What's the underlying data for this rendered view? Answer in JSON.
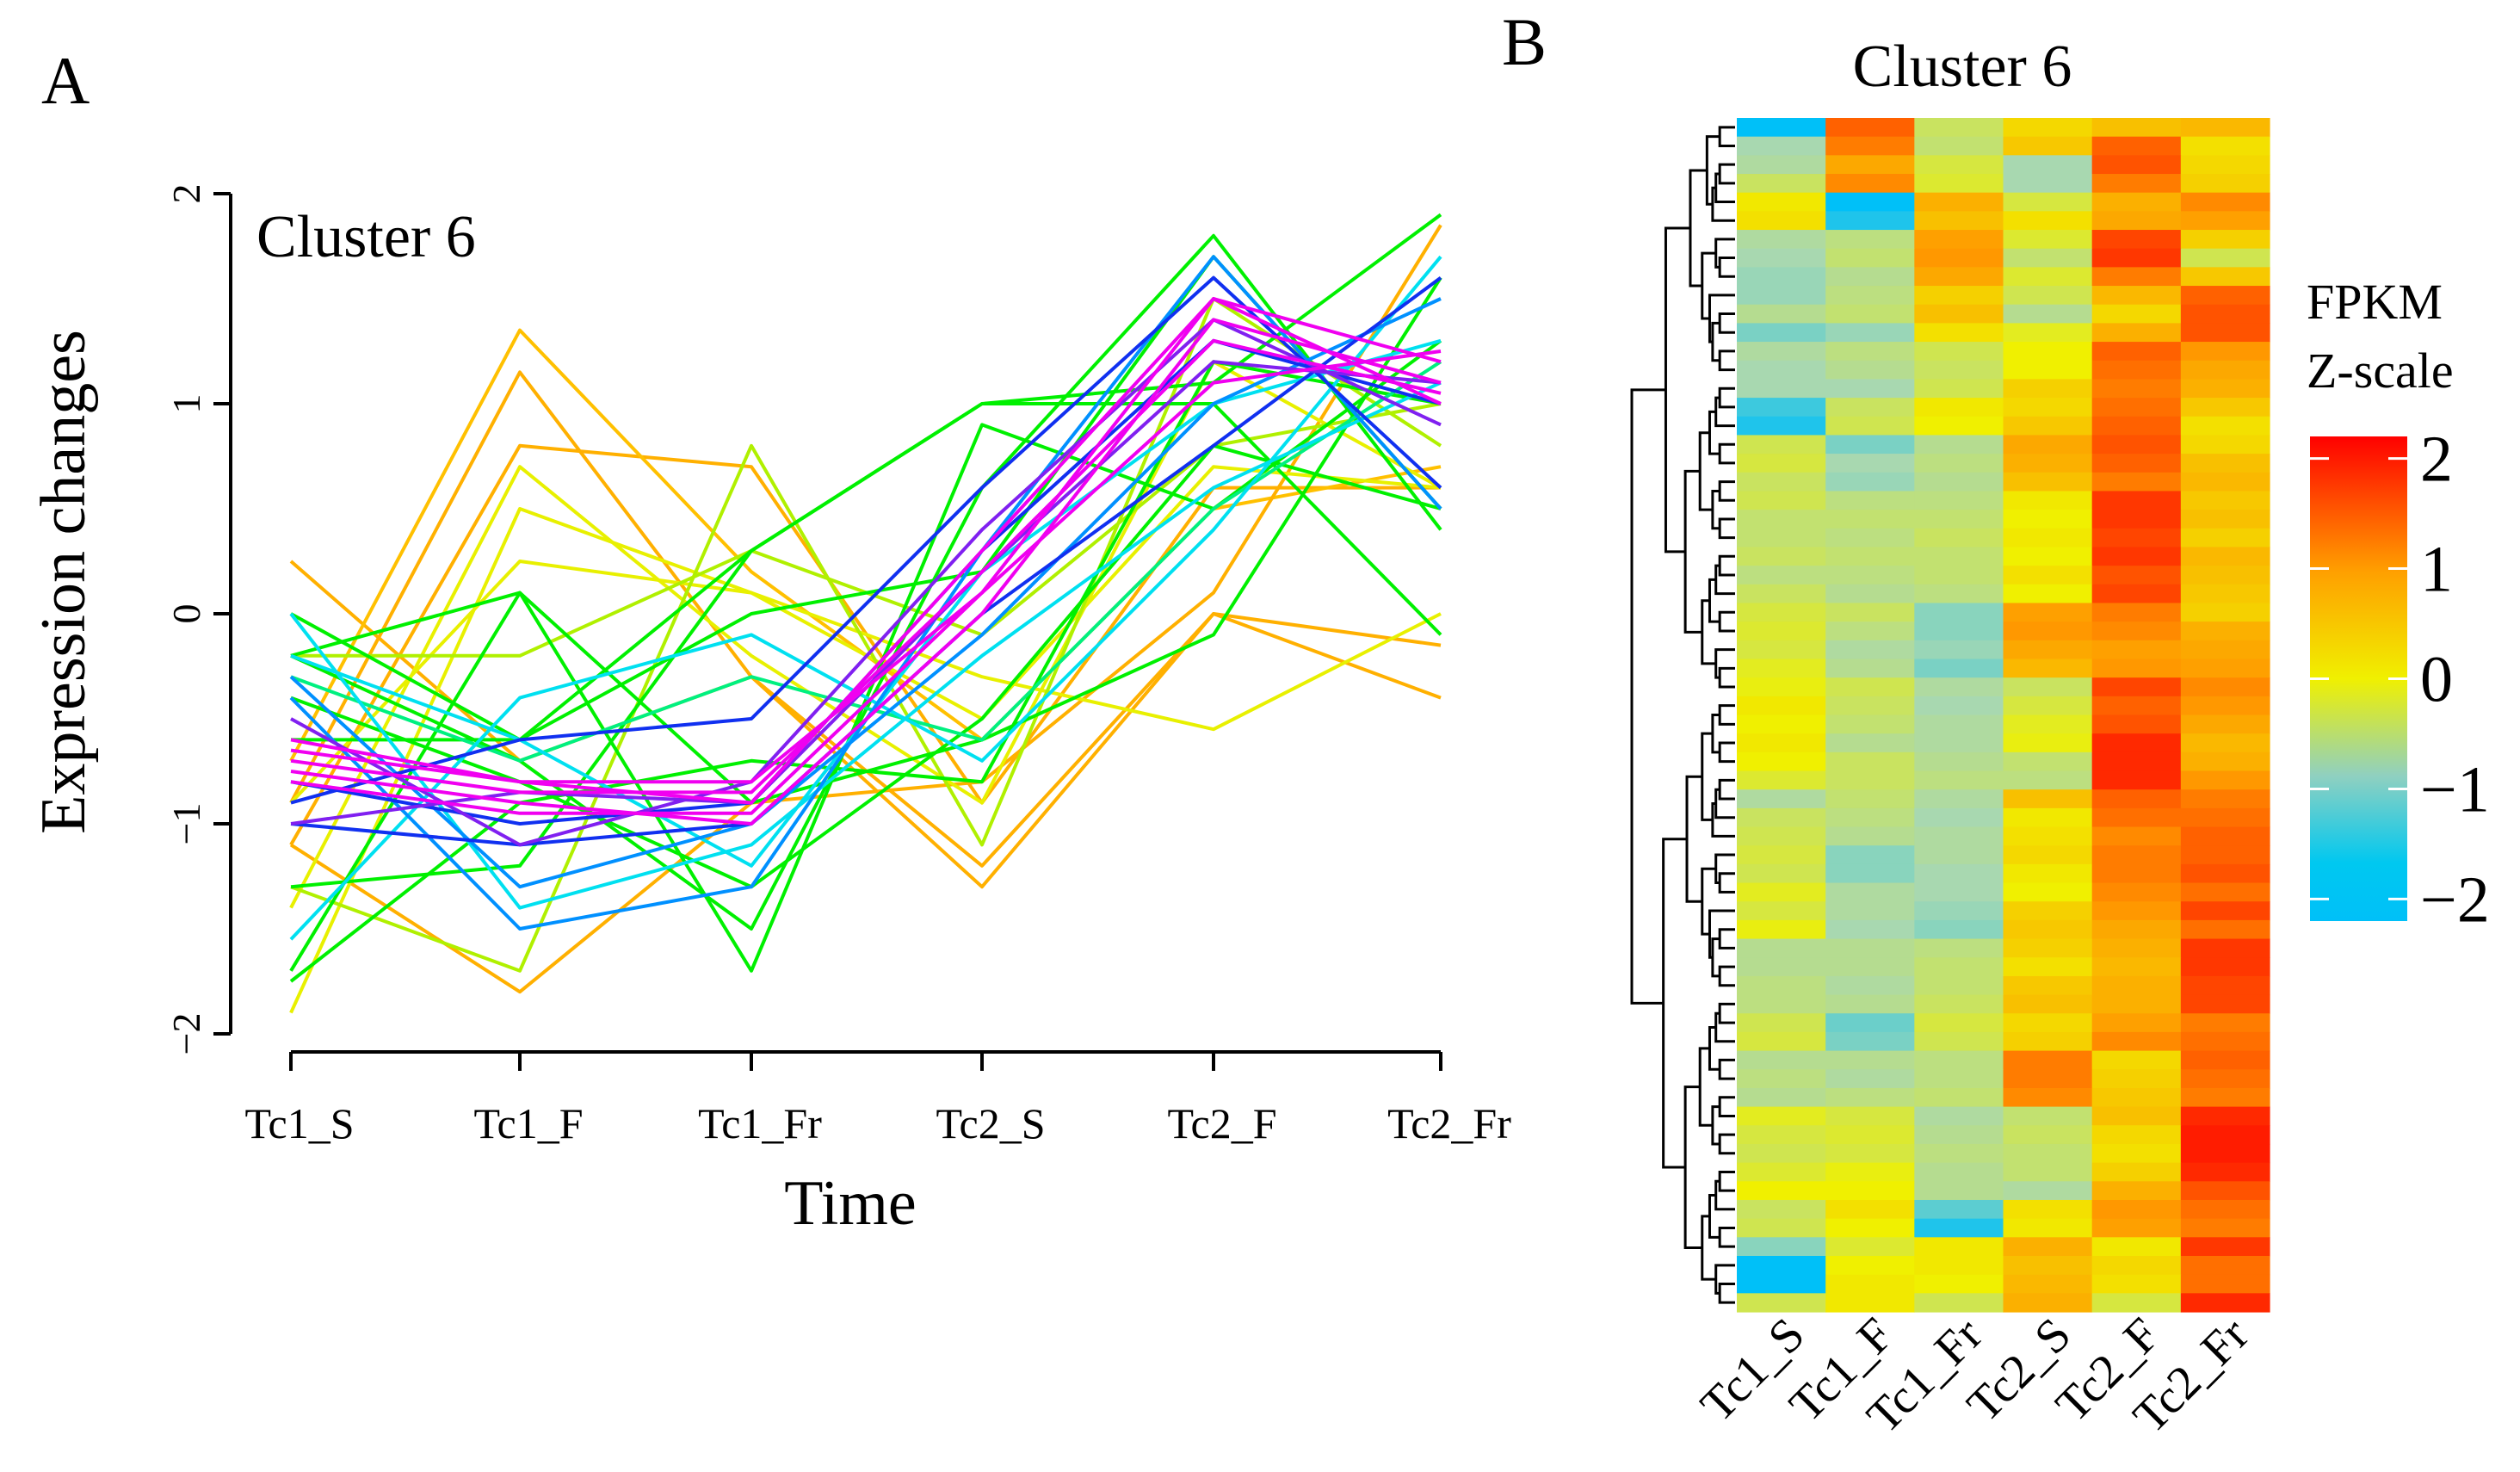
{
  "chart_data": [
    {
      "panel_label": "A",
      "type": "line",
      "title": "Cluster 6",
      "xlabel": "Time",
      "ylabel": "Expression changes",
      "categories": [
        "Tc1_S",
        "Tc1_F",
        "Tc1_Fr",
        "Tc2_S",
        "Tc2_F",
        "Tc2_Fr"
      ],
      "ylim": [
        -2,
        2
      ],
      "yticks": [
        "2",
        "1",
        "0",
        "−1",
        "−2"
      ],
      "ytick_values": [
        2,
        1,
        0,
        -1,
        -2
      ],
      "grid": false,
      "series": [
        {
          "color": "#ffb000",
          "values": [
            0.25,
            -0.7,
            -0.3,
            -1.3,
            0.0,
            -0.15
          ]
        },
        {
          "color": "#ffb000",
          "values": [
            -0.9,
            1.15,
            -0.3,
            -1.2,
            0.0,
            -0.4
          ]
        },
        {
          "color": "#ffb000",
          "values": [
            -1.1,
            0.8,
            0.7,
            -0.9,
            0.6,
            0.6
          ]
        },
        {
          "color": "#ffc000",
          "values": [
            -0.7,
            1.35,
            0.2,
            -0.6,
            0.5,
            0.7
          ]
        },
        {
          "color": "#ffb000",
          "values": [
            -1.1,
            -1.8,
            -0.9,
            -0.8,
            0.1,
            1.85
          ]
        },
        {
          "color": "#e8f000",
          "values": [
            -1.9,
            0.5,
            0.1,
            -0.3,
            -0.55,
            0.0
          ]
        },
        {
          "color": "#e8f000",
          "values": [
            -1.4,
            0.7,
            -0.2,
            -0.9,
            1.2,
            0.6
          ]
        },
        {
          "color": "#e8f000",
          "values": [
            -0.9,
            0.25,
            0.1,
            -0.5,
            0.7,
            0.6
          ]
        },
        {
          "color": "#b0f000",
          "values": [
            -1.3,
            -1.7,
            0.8,
            -1.1,
            1.5,
            0.8
          ]
        },
        {
          "color": "#b0f000",
          "values": [
            -0.2,
            -0.2,
            0.3,
            -0.1,
            0.8,
            1.0
          ]
        },
        {
          "color": "#00f000",
          "values": [
            0.0,
            -0.6,
            0.3,
            1.0,
            1.1,
            1.9
          ]
        },
        {
          "color": "#00f000",
          "values": [
            -1.7,
            0.1,
            -1.7,
            0.9,
            0.5,
            1.3
          ]
        },
        {
          "color": "#00f000",
          "values": [
            -1.75,
            -0.9,
            -0.7,
            -0.8,
            1.2,
            1.0
          ]
        },
        {
          "color": "#00f000",
          "values": [
            -0.2,
            0.1,
            -0.9,
            -0.6,
            -0.1,
            1.6
          ]
        },
        {
          "color": "#00f000",
          "values": [
            -0.4,
            -0.8,
            -1.3,
            -0.5,
            0.8,
            0.5
          ]
        },
        {
          "color": "#00f000",
          "values": [
            -1.3,
            -1.2,
            0.3,
            1.0,
            1.0,
            -0.1
          ]
        },
        {
          "color": "#00f000",
          "values": [
            -0.2,
            -0.7,
            -1.5,
            0.6,
            1.8,
            0.4
          ]
        },
        {
          "color": "#00f000",
          "values": [
            -0.6,
            -0.6,
            0.0,
            0.2,
            1.7,
            0.5
          ]
        },
        {
          "color": "#00f080",
          "values": [
            -0.3,
            -0.7,
            -0.3,
            -0.6,
            0.5,
            1.2
          ]
        },
        {
          "color": "#00e0f0",
          "values": [
            -1.55,
            -0.4,
            -0.1,
            -0.7,
            0.4,
            1.7
          ]
        },
        {
          "color": "#00e0f0",
          "values": [
            -0.2,
            -0.6,
            -1.2,
            0.2,
            1.0,
            1.3
          ]
        },
        {
          "color": "#00e0f0",
          "values": [
            0.0,
            -1.4,
            -1.1,
            -0.2,
            0.6,
            1.1
          ]
        },
        {
          "color": "#0090ff",
          "values": [
            -0.4,
            -1.5,
            -1.3,
            0.3,
            1.7,
            0.5
          ]
        },
        {
          "color": "#0090ff",
          "values": [
            -0.3,
            -1.3,
            -1.0,
            -0.1,
            1.0,
            1.5
          ]
        },
        {
          "color": "#1030f0",
          "values": [
            -0.9,
            -0.6,
            -0.5,
            0.6,
            1.6,
            0.6
          ]
        },
        {
          "color": "#1030f0",
          "values": [
            -1.0,
            -1.1,
            -1.0,
            0.0,
            0.8,
            1.6
          ]
        },
        {
          "color": "#1030f0",
          "values": [
            -0.8,
            -1.0,
            -0.9,
            0.3,
            1.3,
            1.0
          ]
        },
        {
          "color": "#8020f0",
          "values": [
            -0.5,
            -1.1,
            -0.8,
            0.4,
            1.4,
            0.9
          ]
        },
        {
          "color": "#8020f0",
          "values": [
            -1.0,
            -0.85,
            -0.9,
            0.2,
            1.2,
            1.1
          ]
        },
        {
          "color": "#f000f0",
          "values": [
            -0.6,
            -0.8,
            -0.8,
            0.1,
            1.5,
            1.2
          ]
        },
        {
          "color": "#f000f0",
          "values": [
            -0.75,
            -0.9,
            -1.0,
            0.0,
            1.4,
            1.1
          ]
        },
        {
          "color": "#f000f0",
          "values": [
            -0.7,
            -0.85,
            -0.85,
            0.2,
            1.3,
            1.05
          ]
        },
        {
          "color": "#f000f0",
          "values": [
            -0.8,
            -0.95,
            -0.95,
            0.1,
            1.1,
            1.25
          ]
        },
        {
          "color": "#f000f0",
          "values": [
            -0.65,
            -0.8,
            -0.9,
            0.3,
            1.5,
            1.0
          ]
        }
      ]
    },
    {
      "panel_label": "B",
      "type": "heatmap",
      "title": "Cluster 6",
      "columns": [
        "Tc1_S",
        "Tc1_F",
        "Tc1_Fr",
        "Tc2_S",
        "Tc2_F",
        "Tc2_Fr"
      ],
      "legend_title": [
        "FPKM",
        "Z-scale"
      ],
      "legend_ticks": [
        "2",
        "1",
        "0",
        "−1",
        "−2"
      ],
      "legend_tick_values": [
        2,
        1,
        0,
        -1,
        -2
      ],
      "colorscale": [
        "#00c0f8",
        "#a8d8b0",
        "#f0f000",
        "#ff9800",
        "#ff0000"
      ],
      "zlim": [
        -2.2,
        2.2
      ],
      "rows": [
        [
          -2.3,
          1.5,
          -0.6,
          0.3,
          0.6,
          0.7
        ],
        [
          -1.1,
          1.3,
          -0.7,
          0.5,
          1.5,
          0.2
        ],
        [
          -1.0,
          0.9,
          -0.4,
          -1.1,
          1.6,
          0.3
        ],
        [
          -0.6,
          1.2,
          -0.3,
          -1.1,
          1.3,
          0.4
        ],
        [
          0.1,
          -2.2,
          0.8,
          -0.4,
          0.8,
          1.2
        ],
        [
          0.2,
          -2.0,
          0.6,
          0.2,
          0.9,
          1.0
        ],
        [
          -1.0,
          -0.8,
          1.0,
          -0.3,
          1.7,
          0.4
        ],
        [
          -1.1,
          -0.7,
          1.1,
          -0.7,
          1.8,
          -0.5
        ],
        [
          -1.2,
          -0.9,
          0.9,
          -0.3,
          1.3,
          0.5
        ],
        [
          -1.2,
          -0.8,
          0.4,
          -0.5,
          0.7,
          1.5
        ],
        [
          -0.9,
          -0.7,
          0.6,
          -0.9,
          0.3,
          1.6
        ],
        [
          -1.4,
          -1.2,
          0.2,
          -0.2,
          0.8,
          1.6
        ],
        [
          -1.0,
          -0.8,
          -0.5,
          0.0,
          1.5,
          1.1
        ],
        [
          -1.1,
          -0.9,
          -0.6,
          0.0,
          1.4,
          0.9
        ],
        [
          -1.1,
          -1.1,
          -0.5,
          0.4,
          1.3,
          0.8
        ],
        [
          -1.8,
          -0.6,
          0.1,
          0.3,
          1.4,
          0.5
        ],
        [
          -2.0,
          -0.5,
          0.0,
          0.5,
          1.5,
          0.2
        ],
        [
          -0.5,
          -1.4,
          -0.9,
          0.9,
          1.6,
          0.3
        ],
        [
          -0.4,
          -1.1,
          -0.8,
          0.8,
          1.5,
          0.6
        ],
        [
          -0.6,
          -1.2,
          -0.9,
          0.6,
          1.3,
          0.7
        ],
        [
          -0.5,
          -0.8,
          -0.8,
          0.1,
          1.8,
          0.5
        ],
        [
          -0.7,
          -0.7,
          -0.7,
          0.0,
          1.8,
          0.6
        ],
        [
          -0.7,
          -0.8,
          -0.6,
          0.1,
          1.7,
          0.4
        ],
        [
          -0.6,
          -0.7,
          -0.7,
          0.0,
          1.8,
          0.7
        ],
        [
          -0.8,
          -0.8,
          -0.7,
          0.2,
          1.6,
          0.6
        ],
        [
          -0.6,
          -0.9,
          -0.8,
          0.0,
          1.7,
          0.5
        ],
        [
          -0.4,
          -0.6,
          -1.3,
          1.0,
          1.3,
          0.4
        ],
        [
          -0.3,
          -0.8,
          -1.3,
          1.1,
          1.2,
          0.8
        ],
        [
          -0.4,
          -1.0,
          -1.2,
          0.9,
          1.0,
          0.9
        ],
        [
          -0.2,
          -0.9,
          -1.4,
          0.7,
          1.1,
          1.0
        ],
        [
          -0.1,
          -0.5,
          -1.0,
          -0.6,
          1.7,
          1.2
        ],
        [
          0.1,
          -0.6,
          -1.1,
          -0.4,
          1.5,
          1.1
        ],
        [
          0.0,
          -0.7,
          -1.0,
          -0.2,
          1.6,
          0.9
        ],
        [
          0.1,
          -0.9,
          -1.0,
          -0.1,
          1.9,
          0.7
        ],
        [
          0.0,
          -0.6,
          -0.9,
          -0.7,
          1.9,
          0.8
        ],
        [
          -0.3,
          -0.6,
          -0.8,
          -0.8,
          1.9,
          1.1
        ],
        [
          -1.0,
          -0.7,
          -1.0,
          0.6,
          1.5,
          1.3
        ],
        [
          -0.6,
          -0.8,
          -1.1,
          0.1,
          1.4,
          1.4
        ],
        [
          -0.5,
          -0.9,
          -1.0,
          0.2,
          1.2,
          1.5
        ],
        [
          -0.4,
          -1.3,
          -1.0,
          0.3,
          1.3,
          1.5
        ],
        [
          -0.5,
          -1.3,
          -1.1,
          0.1,
          1.3,
          1.6
        ],
        [
          -0.2,
          -1.0,
          -1.1,
          0.0,
          1.2,
          1.4
        ],
        [
          -0.4,
          -1.0,
          -1.2,
          0.4,
          1.1,
          1.7
        ],
        [
          -0.1,
          -1.1,
          -1.3,
          0.5,
          0.9,
          1.4
        ],
        [
          -0.9,
          -0.9,
          -0.8,
          0.4,
          0.8,
          1.8
        ],
        [
          -0.9,
          -0.9,
          -0.7,
          0.2,
          0.7,
          1.8
        ],
        [
          -0.8,
          -1.0,
          -0.7,
          0.5,
          0.8,
          1.7
        ],
        [
          -0.8,
          -0.9,
          -0.6,
          0.6,
          0.8,
          1.7
        ],
        [
          -0.5,
          -1.5,
          -0.4,
          0.3,
          1.0,
          1.3
        ],
        [
          -0.4,
          -1.4,
          -0.5,
          0.4,
          1.2,
          1.4
        ],
        [
          -0.9,
          -0.9,
          -0.8,
          1.3,
          0.3,
          1.5
        ],
        [
          -0.8,
          -1.0,
          -0.8,
          1.3,
          0.4,
          1.4
        ],
        [
          -0.9,
          -0.8,
          -0.7,
          1.2,
          0.5,
          1.3
        ],
        [
          -0.2,
          -0.4,
          -1.0,
          -0.7,
          0.6,
          1.9
        ],
        [
          -0.4,
          -0.3,
          -0.9,
          -0.6,
          0.3,
          2.0
        ],
        [
          -0.5,
          -0.4,
          -0.8,
          -0.7,
          0.2,
          2.0
        ],
        [
          -0.3,
          -0.1,
          -0.9,
          -0.7,
          0.4,
          1.9
        ],
        [
          0.0,
          0.0,
          -0.9,
          -1.0,
          0.8,
          1.6
        ],
        [
          -0.6,
          0.2,
          -1.6,
          0.2,
          1.1,
          1.4
        ],
        [
          -0.5,
          0.0,
          -2.0,
          0.1,
          1.0,
          1.3
        ],
        [
          -1.3,
          -0.3,
          0.1,
          0.8,
          0.1,
          1.8
        ],
        [
          -2.3,
          0.0,
          0.1,
          0.6,
          0.3,
          1.4
        ],
        [
          -2.3,
          0.1,
          0.0,
          0.7,
          0.2,
          1.4
        ],
        [
          -0.5,
          0.1,
          -0.5,
          0.8,
          -0.4,
          1.9
        ]
      ]
    }
  ]
}
